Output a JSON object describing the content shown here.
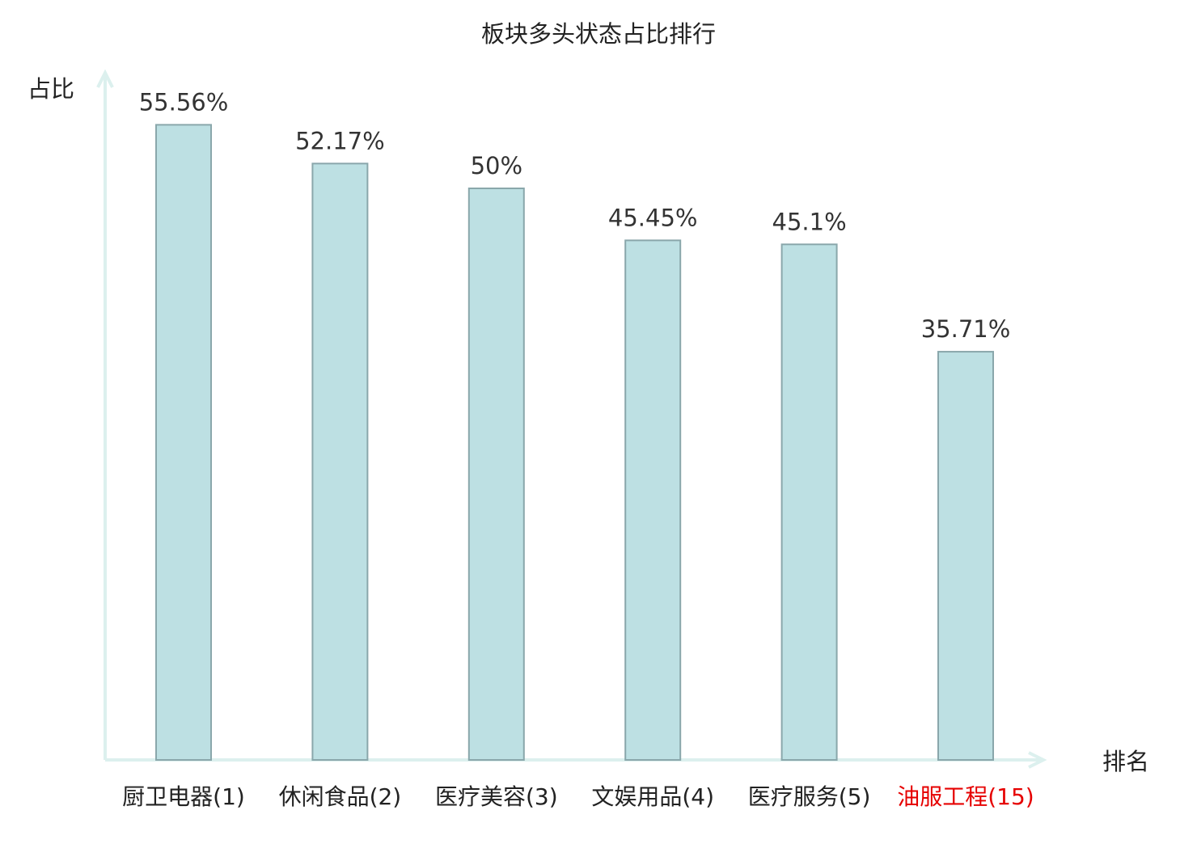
{
  "chart_data": {
    "type": "bar",
    "title": "板块多头状态占比排行",
    "ylabel": "占比",
    "xlabel": "排名",
    "categories": [
      "厨卫电器(1)",
      "休闲食品(2)",
      "医疗美容(3)",
      "文娱用品(4)",
      "医疗服务(5)",
      "油服工程(15)"
    ],
    "values": [
      55.56,
      52.17,
      50,
      45.45,
      45.1,
      35.71
    ],
    "value_labels": [
      "55.56%",
      "52.17%",
      "50%",
      "45.45%",
      "45.1%",
      "35.71%"
    ],
    "highlight_index": 5,
    "ylim": [
      0,
      60
    ],
    "grid": false,
    "colors": {
      "bar_fill": "#bde0e3",
      "bar_stroke": "#8aa7ab",
      "axis": "#dcf0ee",
      "text": "#333333",
      "highlight_text": "#e60000"
    }
  }
}
